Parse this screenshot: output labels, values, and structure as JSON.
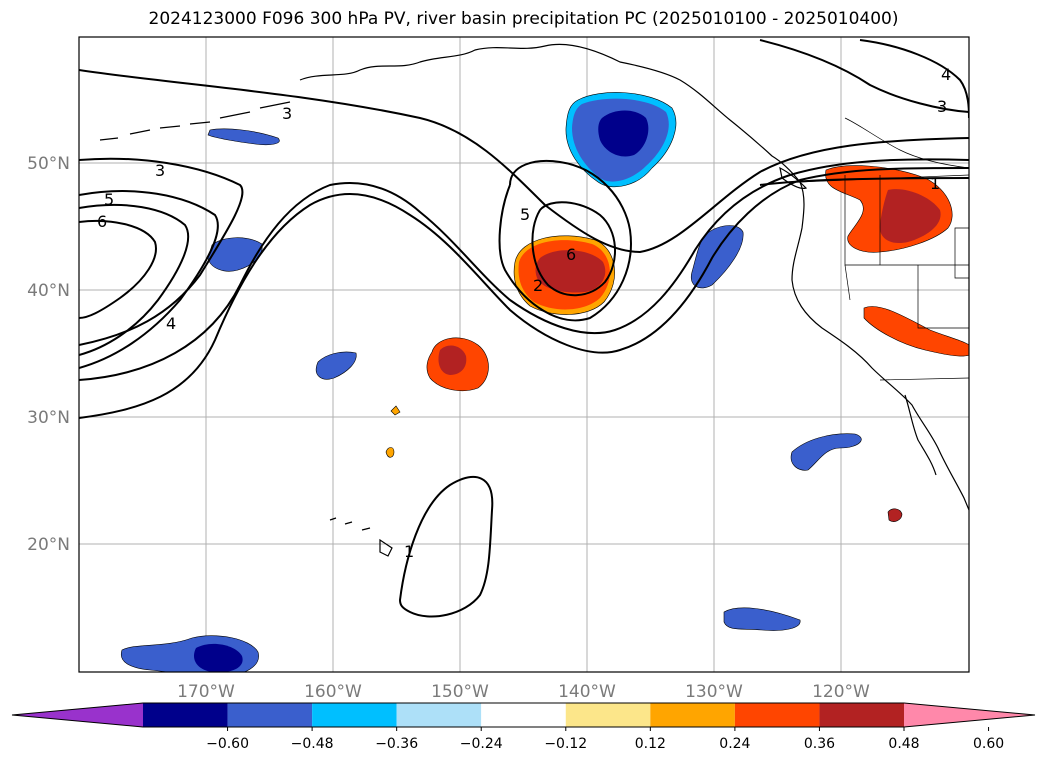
{
  "title": "2024123000 F096 300 hPa PV, river basin precipitation PC (2025010100 - 2025010400)",
  "map": {
    "lat_labels": [
      "50°N",
      "40°N",
      "30°N",
      "20°N"
    ],
    "lon_labels": [
      "170°W",
      "160°W",
      "150°W",
      "140°W",
      "130°W",
      "120°W"
    ],
    "lat_values": [
      50,
      40,
      30,
      20
    ],
    "lon_values": [
      -170,
      -160,
      -150,
      -140,
      -130,
      -120
    ],
    "extent": {
      "lon_min": -180,
      "lon_max": -110,
      "lat_min": 10,
      "lat_max": 60
    },
    "grid": true,
    "contour_labels": [
      "3",
      "3",
      "5",
      "6",
      "4",
      "5",
      "6",
      "2",
      "1",
      "1",
      "4",
      "3"
    ]
  },
  "colorbar": {
    "tick_labels": [
      "−0.60",
      "−0.48",
      "−0.36",
      "−0.24",
      "−0.12",
      "0.12",
      "0.24",
      "0.36",
      "0.48",
      "0.60"
    ],
    "colors": [
      "#9932CC",
      "#00008B",
      "#3A5FCD",
      "#00BFFF",
      "#ADE0F8",
      "#FFFFFF",
      "#FCE68A",
      "#FFA500",
      "#FF4500",
      "#B22222",
      "#FF88AA"
    ]
  }
}
